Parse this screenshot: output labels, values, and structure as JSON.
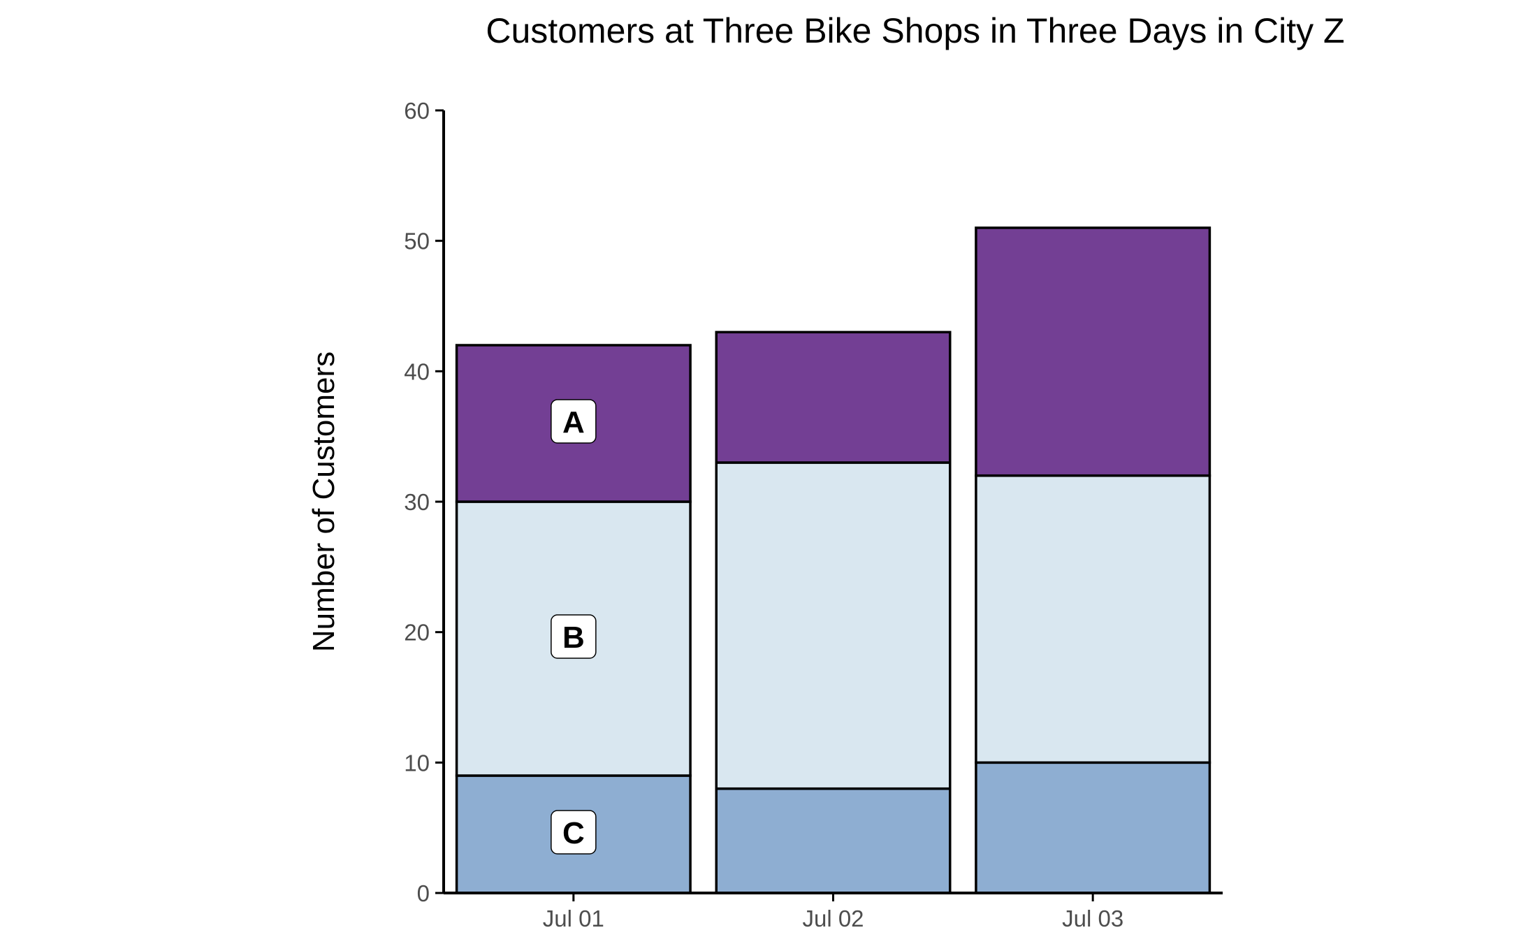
{
  "chart_data": {
    "type": "bar",
    "stacked": true,
    "title": "Customers at Three Bike Shops in Three Days in City Z",
    "xlabel": "",
    "ylabel": "Number of Customers",
    "categories": [
      "Jul 01",
      "Jul 02",
      "Jul 03"
    ],
    "ylim": [
      0,
      60
    ],
    "yticks": [
      0,
      10,
      20,
      30,
      40,
      50,
      60
    ],
    "grid": false,
    "legend": "none",
    "stack_order": [
      "C",
      "B",
      "A"
    ],
    "series": [
      {
        "name": "C",
        "values": [
          9,
          8,
          10
        ],
        "color": "#8eaed2"
      },
      {
        "name": "B",
        "values": [
          21,
          25,
          22
        ],
        "color": "#d9e7f0"
      },
      {
        "name": "A",
        "values": [
          12,
          10,
          19
        ],
        "color": "#733f94"
      }
    ],
    "segment_labels": [
      {
        "series": "A",
        "category": "Jul 01",
        "text": "A"
      },
      {
        "series": "B",
        "category": "Jul 01",
        "text": "B"
      },
      {
        "series": "C",
        "category": "Jul 01",
        "text": "C"
      }
    ]
  }
}
